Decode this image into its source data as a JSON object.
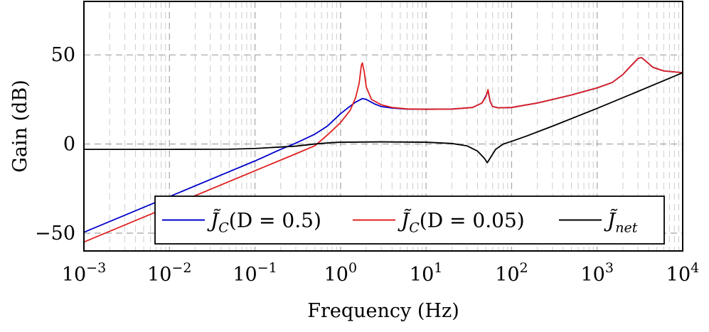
{
  "chart_data": {
    "type": "line",
    "xscale": "log",
    "xlim": [
      0.001,
      10000
    ],
    "ylim": [
      -60,
      80
    ],
    "xlabel": "Frequency (Hz)",
    "ylabel": "Gain (dB)",
    "grid": true,
    "legend_position": "lower-center",
    "x_ticks": [
      {
        "base": "10",
        "exp": "−3"
      },
      {
        "base": "10",
        "exp": "−2"
      },
      {
        "base": "10",
        "exp": "−1"
      },
      {
        "base": "10",
        "exp": "0"
      },
      {
        "base": "10",
        "exp": "1"
      },
      {
        "base": "10",
        "exp": "2"
      },
      {
        "base": "10",
        "exp": "3"
      },
      {
        "base": "10",
        "exp": "4"
      }
    ],
    "y_ticks": [
      "−50",
      "0",
      "50"
    ],
    "y_tick_values": [
      -50,
      0,
      50
    ],
    "series": [
      {
        "name": "J̃_C(D = 0.5)",
        "legend_main": "J̃",
        "legend_sub": "C",
        "legend_rest": "(D = 0.5)",
        "color": "#0000cc",
        "points": [
          [
            0.001,
            -49.5
          ],
          [
            0.01,
            -29.5
          ],
          [
            0.05,
            -15.5
          ],
          [
            0.1,
            -9.5
          ],
          [
            0.2,
            -3
          ],
          [
            0.3,
            0.5
          ],
          [
            0.5,
            5.5
          ],
          [
            0.7,
            10
          ],
          [
            1.0,
            17
          ],
          [
            1.2,
            20
          ],
          [
            1.5,
            23.5
          ],
          [
            1.8,
            25.5
          ],
          [
            2.0,
            25
          ],
          [
            2.5,
            22.5
          ],
          [
            3.0,
            21
          ],
          [
            4.0,
            20.2
          ],
          [
            6.0,
            19.6
          ],
          [
            10,
            19.5
          ],
          [
            20,
            19.6
          ],
          [
            35,
            20.5
          ],
          [
            45,
            23
          ],
          [
            50,
            27
          ],
          [
            53,
            30
          ],
          [
            56,
            24
          ],
          [
            60,
            21
          ],
          [
            70,
            20.3
          ],
          [
            100,
            20.5
          ],
          [
            200,
            23
          ],
          [
            500,
            27.5
          ],
          [
            1000,
            31.5
          ],
          [
            1500,
            34.5
          ],
          [
            2000,
            39
          ],
          [
            2500,
            44
          ],
          [
            3000,
            48
          ],
          [
            3300,
            48.5
          ],
          [
            3700,
            46.5
          ],
          [
            4500,
            43
          ],
          [
            6000,
            41
          ],
          [
            10000,
            40
          ]
        ]
      },
      {
        "name": "J̃_C(D = 0.05)",
        "legend_main": "J̃",
        "legend_sub": "C",
        "legend_rest": "(D = 0.05)",
        "color": "#e02020",
        "points": [
          [
            0.001,
            -55
          ],
          [
            0.01,
            -35
          ],
          [
            0.1,
            -15
          ],
          [
            0.3,
            -5.5
          ],
          [
            0.5,
            -1
          ],
          [
            0.7,
            5
          ],
          [
            1.0,
            12
          ],
          [
            1.3,
            19
          ],
          [
            1.5,
            26
          ],
          [
            1.65,
            34
          ],
          [
            1.75,
            44
          ],
          [
            1.8,
            45.5
          ],
          [
            1.9,
            40
          ],
          [
            2.0,
            32
          ],
          [
            2.3,
            25
          ],
          [
            3.0,
            22
          ],
          [
            4.0,
            20.5
          ],
          [
            6.0,
            19.7
          ],
          [
            10,
            19.5
          ],
          [
            20,
            19.6
          ],
          [
            35,
            20.5
          ],
          [
            45,
            23
          ],
          [
            50,
            26.5
          ],
          [
            53,
            30.5
          ],
          [
            56,
            24
          ],
          [
            60,
            21
          ],
          [
            70,
            20.3
          ],
          [
            100,
            20.5
          ],
          [
            200,
            23
          ],
          [
            500,
            27.5
          ],
          [
            1000,
            31.5
          ],
          [
            1500,
            34.5
          ],
          [
            2000,
            39
          ],
          [
            2500,
            44
          ],
          [
            3000,
            48
          ],
          [
            3300,
            48.5
          ],
          [
            3700,
            46.5
          ],
          [
            4500,
            43
          ],
          [
            6000,
            41
          ],
          [
            10000,
            40
          ]
        ]
      },
      {
        "name": "J̃_net",
        "legend_main": "J̃",
        "legend_sub": "net",
        "legend_rest": "",
        "color": "#000000",
        "points": [
          [
            0.001,
            -3
          ],
          [
            0.01,
            -3
          ],
          [
            0.05,
            -2.9
          ],
          [
            0.1,
            -2.5
          ],
          [
            0.3,
            -1.2
          ],
          [
            0.5,
            0
          ],
          [
            0.8,
            0.8
          ],
          [
            1.0,
            1
          ],
          [
            3.0,
            1.2
          ],
          [
            10,
            1
          ],
          [
            20,
            0.3
          ],
          [
            30,
            -1
          ],
          [
            40,
            -4
          ],
          [
            48,
            -8
          ],
          [
            52,
            -10.5
          ],
          [
            56,
            -8
          ],
          [
            65,
            -3
          ],
          [
            80,
            0
          ],
          [
            100,
            1.5
          ],
          [
            150,
            4.5
          ],
          [
            300,
            10
          ],
          [
            1000,
            20
          ],
          [
            3000,
            29.5
          ],
          [
            10000,
            40
          ]
        ]
      }
    ]
  }
}
